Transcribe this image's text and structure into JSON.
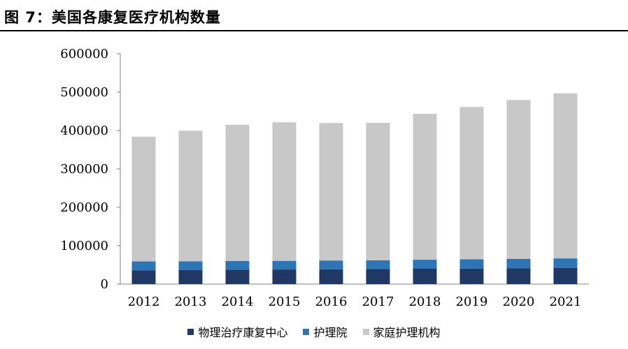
{
  "figure": {
    "title": "图  7：美国各康复医疗机构数量"
  },
  "chart_data": {
    "type": "bar",
    "stacked": true,
    "categories": [
      "2012",
      "2013",
      "2014",
      "2015",
      "2016",
      "2017",
      "2018",
      "2019",
      "2020",
      "2021"
    ],
    "series": [
      {
        "name": "物理治疗康复中心",
        "color": "#1f3864",
        "values": [
          36000,
          37000,
          37500,
          38000,
          38500,
          39000,
          40000,
          40500,
          41000,
          42000
        ]
      },
      {
        "name": "护理院",
        "color": "#2e75b6",
        "values": [
          23000,
          22500,
          22500,
          22500,
          23000,
          23000,
          23500,
          24000,
          24500,
          25000
        ]
      },
      {
        "name": "家庭护理机构",
        "color": "#c8c8c8",
        "values": [
          325000,
          340000,
          355000,
          361000,
          358000,
          358000,
          380000,
          397000,
          414000,
          430000
        ]
      }
    ],
    "ylim": [
      0,
      600000
    ],
    "yticks": [
      "600000",
      "500000",
      "400000",
      "300000",
      "200000",
      "100000",
      "0"
    ],
    "legend_position": "bottom",
    "grid": false
  }
}
